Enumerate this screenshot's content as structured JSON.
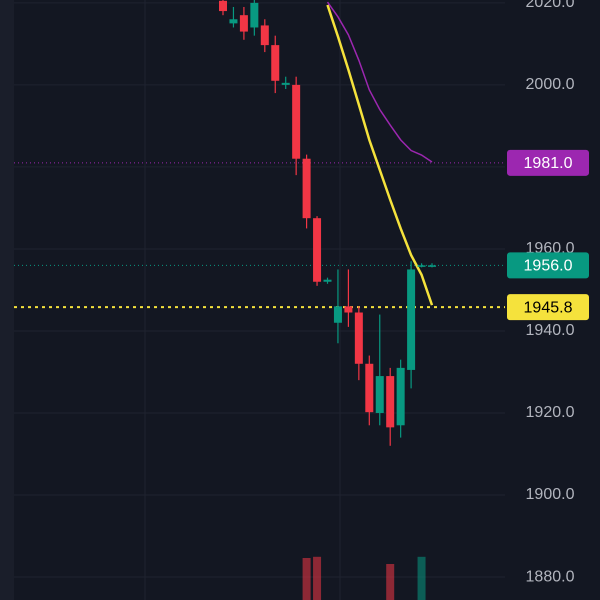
{
  "chart_data": {
    "type": "candlestick",
    "ylim": [
      1874.4,
      2020.7
    ],
    "yticks": [
      {
        "value": 1880,
        "label": "1880.0"
      },
      {
        "value": 1900,
        "label": "1900.0"
      },
      {
        "value": 1920,
        "label": "1920.0"
      },
      {
        "value": 1940,
        "label": "1940.0"
      },
      {
        "value": 1960,
        "label": "1960.0"
      },
      {
        "value": 1980,
        "label": "1980.0"
      },
      {
        "value": 2000,
        "label": "2000.0"
      },
      {
        "value": 2020,
        "label": "2020.0"
      }
    ],
    "grid": true,
    "up_color": "#089981",
    "down_color": "#f23645",
    "open": [
      2020.5,
      2015,
      2017,
      2014,
      2014.5,
      2009.7,
      2000,
      2000,
      1982,
      1967.5,
      1952,
      1942,
      1946,
      1944.5,
      1932,
      1920,
      1929,
      1917,
      1930.5,
      1956,
      1956
    ],
    "high": [
      2021,
      2019,
      2019,
      2021,
      2016,
      2012,
      2002,
      2002,
      1983,
      1968,
      1953,
      1955,
      1955,
      1946,
      1934,
      1944,
      1931,
      1933,
      1957,
      1956.5,
      1956.5
    ],
    "low": [
      2017,
      2014,
      2011,
      2012,
      2008,
      1998,
      1999,
      1978,
      1965,
      1951,
      1951.5,
      1937,
      1941,
      1928,
      1917,
      1917,
      1912,
      1914,
      1926,
      1955.5,
      1955.5
    ],
    "close": [
      2018,
      2016,
      2013,
      2020,
      2009.7,
      2001,
      2000.5,
      1982,
      1967.5,
      1952,
      1952.5,
      1946,
      1944.5,
      1932,
      1920.2,
      1929,
      1916.5,
      1931,
      1955,
      1956,
      1956
    ],
    "volume": [
      null,
      null,
      null,
      null,
      null,
      null,
      null,
      null,
      70,
      72,
      null,
      null,
      null,
      null,
      null,
      null,
      60,
      null,
      null,
      72,
      null
    ],
    "volume_lim": [
      0,
      100
    ],
    "series": [
      {
        "color": "#f5e23c",
        "values": [
          null,
          null,
          null,
          null,
          null,
          null,
          null,
          null,
          null,
          null,
          2019.5,
          2011.8,
          2003.7,
          1995.2,
          1986.6,
          1979.3,
          1972,
          1965,
          1958.5,
          1953.7,
          1946.3
        ]
      },
      {
        "color": "#9c27b0",
        "values": [
          null,
          null,
          null,
          null,
          null,
          null,
          null,
          null,
          null,
          null,
          2020.2,
          2016.6,
          2012.2,
          2006,
          1998.8,
          1994,
          1990.2,
          1986.6,
          1984,
          1982.9,
          1981.2
        ]
      }
    ],
    "price_lines": [
      {
        "value": 1981,
        "label": "1981.0",
        "color": "#9c27b0",
        "text_color": "#ffffff"
      },
      {
        "value": 1956,
        "label": "1956.0",
        "color": "#089981",
        "text_color": "#ffffff"
      },
      {
        "value": 1945.8,
        "label": "1945.8",
        "color": "#f5e23c",
        "text_color": "#000000"
      }
    ]
  }
}
